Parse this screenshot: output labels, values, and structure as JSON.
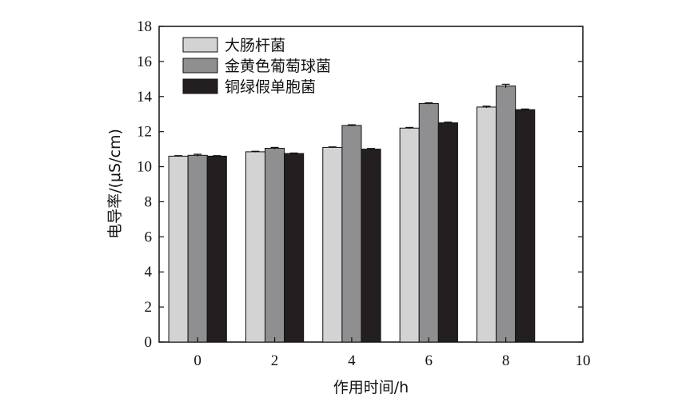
{
  "chart_data": {
    "type": "bar",
    "xlabel": "作用时间/h",
    "ylabel": "电导率/(μS/cm)",
    "x_ticks": [
      "0",
      "2",
      "4",
      "6",
      "8",
      "10"
    ],
    "y_ticks": [
      "0",
      "2",
      "4",
      "6",
      "8",
      "10",
      "12",
      "14",
      "16",
      "18"
    ],
    "xlim": [
      -1,
      10
    ],
    "ylim": [
      0,
      18
    ],
    "categories": [
      "0",
      "2",
      "4",
      "6",
      "8"
    ],
    "series": [
      {
        "name": "大肠杆菌",
        "color": "#d3d3d3",
        "values": [
          10.6,
          10.85,
          11.1,
          12.2,
          13.4
        ],
        "errors": [
          0.03,
          0.03,
          0.03,
          0.04,
          0.05
        ]
      },
      {
        "name": "金黄色葡萄球菌",
        "color": "#8f8f91",
        "values": [
          10.65,
          11.05,
          12.35,
          13.6,
          14.6
        ],
        "errors": [
          0.06,
          0.05,
          0.04,
          0.04,
          0.1
        ]
      },
      {
        "name": "铜绿假单胞菌",
        "color": "#231f20",
        "values": [
          10.6,
          10.75,
          11.0,
          12.5,
          13.25
        ],
        "errors": [
          0.03,
          0.03,
          0.04,
          0.04,
          0.04
        ]
      }
    ],
    "legend_position": "top-left",
    "grid": false
  }
}
